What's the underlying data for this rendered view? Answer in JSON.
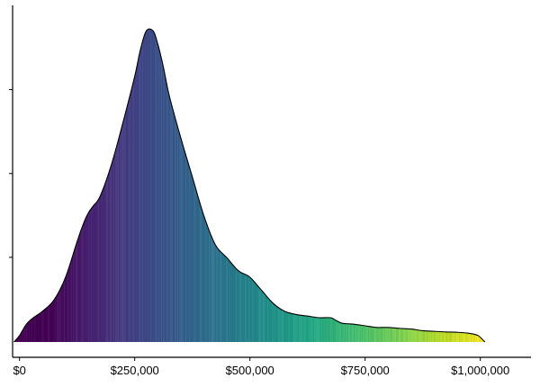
{
  "chart_data": {
    "type": "area",
    "title": "",
    "xlabel": "",
    "ylabel": "",
    "xlim": [
      -15000,
      1110000
    ],
    "ylim": [
      0,
      1.0
    ],
    "grid": false,
    "legend": "none",
    "fill": "viridis gradient along x",
    "x_ticks": [
      {
        "value": 0,
        "label": "$0"
      },
      {
        "value": 250000,
        "label": "$250,000"
      },
      {
        "value": 500000,
        "label": "$500,000"
      },
      {
        "value": 750000,
        "label": "$750,000"
      },
      {
        "value": 1000000,
        "label": "$1,000,000"
      }
    ],
    "y_ticks": [
      {
        "value": 0.2613,
        "label": ""
      },
      {
        "value": 0.5201,
        "label": ""
      },
      {
        "value": 0.7789,
        "label": ""
      }
    ],
    "series": [
      {
        "x": [
          -12000,
          0,
          15000,
          30000,
          50000,
          75000,
          100000,
          125000,
          140000,
          150000,
          160000,
          175000,
          200000,
          225000,
          250000,
          262000,
          275000,
          290000,
          300000,
          312000,
          325000,
          350000,
          375000,
          400000,
          425000,
          450000,
          475000,
          500000,
          525000,
          550000,
          575000,
          600000,
          625000,
          650000,
          675000,
          685000,
          700000,
          725000,
          750000,
          775000,
          800000,
          825000,
          850000,
          875000,
          900000,
          925000,
          950000,
          975000,
          995000,
          1010000
        ],
        "y": [
          0.0,
          0.02,
          0.055,
          0.075,
          0.095,
          0.13,
          0.2,
          0.31,
          0.37,
          0.4,
          0.42,
          0.45,
          0.55,
          0.68,
          0.82,
          0.9,
          0.96,
          0.96,
          0.92,
          0.85,
          0.76,
          0.63,
          0.51,
          0.39,
          0.3,
          0.26,
          0.22,
          0.2,
          0.16,
          0.12,
          0.095,
          0.085,
          0.08,
          0.075,
          0.075,
          0.068,
          0.058,
          0.055,
          0.05,
          0.045,
          0.045,
          0.042,
          0.04,
          0.035,
          0.033,
          0.031,
          0.03,
          0.027,
          0.02,
          0.0
        ]
      }
    ]
  }
}
